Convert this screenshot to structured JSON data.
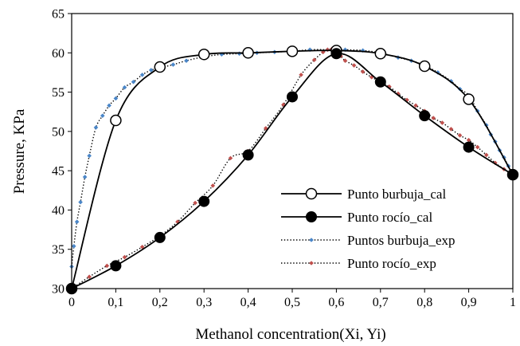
{
  "chart_data": {
    "type": "line",
    "xlabel": "Methanol concentration(Xi, Yi)",
    "ylabel": "Pressure, KPa",
    "xlim": [
      0,
      1
    ],
    "ylim": [
      30,
      65
    ],
    "x_ticks": [
      "0",
      "0,1",
      "0,2",
      "0,3",
      "0,4",
      "0,5",
      "0,6",
      "0,7",
      "0,8",
      "0,9",
      "1"
    ],
    "y_ticks": [
      "30",
      "35",
      "40",
      "45",
      "50",
      "55",
      "60",
      "65"
    ],
    "grid": false,
    "legend_position": "bottom-right",
    "series": [
      {
        "name": "Punto burbuja_cal",
        "style": "solid-line-open-circle",
        "color": "#000000",
        "x": [
          0,
          0.1,
          0.2,
          0.3,
          0.4,
          0.5,
          0.6,
          0.7,
          0.8,
          0.9,
          1.0
        ],
        "y": [
          30.0,
          51.4,
          58.2,
          59.8,
          60.0,
          60.2,
          60.3,
          59.9,
          58.3,
          54.1,
          44.5
        ]
      },
      {
        "name": "Punto rocío_cal",
        "style": "solid-line-filled-circle",
        "color": "#000000",
        "x": [
          0,
          0.1,
          0.2,
          0.3,
          0.4,
          0.5,
          0.6,
          0.7,
          0.8,
          0.9,
          1.0
        ],
        "y": [
          30.0,
          32.9,
          36.5,
          41.1,
          47.0,
          54.4,
          59.9,
          56.3,
          52.0,
          48.0,
          44.5
        ]
      },
      {
        "name": "Puntos burbuja_exp",
        "style": "dotted-line-blue-diamond",
        "color": "#4a86c8",
        "x": [
          0.0,
          0.005,
          0.012,
          0.02,
          0.03,
          0.04,
          0.055,
          0.07,
          0.085,
          0.1,
          0.12,
          0.14,
          0.16,
          0.18,
          0.2,
          0.23,
          0.26,
          0.3,
          0.34,
          0.38,
          0.42,
          0.46,
          0.5,
          0.54,
          0.58,
          0.6,
          0.62,
          0.66,
          0.7,
          0.74,
          0.77,
          0.8,
          0.83,
          0.86,
          0.88,
          0.9,
          0.92,
          0.94,
          0.95,
          0.96,
          0.97,
          0.98,
          0.99,
          1.0
        ],
        "y": [
          32.8,
          35.4,
          38.5,
          41.0,
          44.2,
          46.9,
          50.5,
          52.0,
          53.3,
          54.2,
          55.6,
          56.3,
          57.2,
          57.8,
          58.1,
          58.5,
          59.0,
          59.5,
          59.8,
          59.9,
          60.0,
          60.1,
          60.2,
          60.4,
          60.4,
          60.4,
          60.4,
          60.3,
          60.0,
          59.4,
          59.0,
          58.4,
          57.5,
          56.4,
          55.4,
          54.6,
          52.6,
          50.8,
          49.6,
          48.7,
          47.6,
          46.7,
          45.6,
          44.8
        ]
      },
      {
        "name": "Punto rocío_exp",
        "style": "dotted-line-red-diamond",
        "color": "#c0504d",
        "x": [
          0.0,
          0.04,
          0.08,
          0.12,
          0.16,
          0.2,
          0.24,
          0.28,
          0.32,
          0.36,
          0.4,
          0.44,
          0.48,
          0.52,
          0.55,
          0.57,
          0.58,
          0.59,
          0.6,
          0.61,
          0.62,
          0.64,
          0.66,
          0.68,
          0.7,
          0.72,
          0.74,
          0.76,
          0.78,
          0.8,
          0.82,
          0.84,
          0.86,
          0.88,
          0.9,
          0.92,
          0.94,
          0.96,
          0.98,
          1.0
        ],
        "y": [
          30.0,
          31.5,
          32.9,
          34.0,
          35.3,
          36.7,
          38.5,
          40.9,
          43.1,
          46.6,
          47.5,
          50.4,
          53.4,
          57.2,
          59.1,
          60.1,
          60.4,
          60.5,
          60.3,
          59.6,
          59.0,
          58.4,
          57.6,
          56.9,
          56.3,
          55.7,
          54.8,
          54.0,
          53.3,
          52.6,
          51.7,
          51.1,
          50.3,
          49.5,
          48.9,
          48.0,
          47.0,
          46.0,
          45.2,
          44.4
        ]
      }
    ]
  }
}
